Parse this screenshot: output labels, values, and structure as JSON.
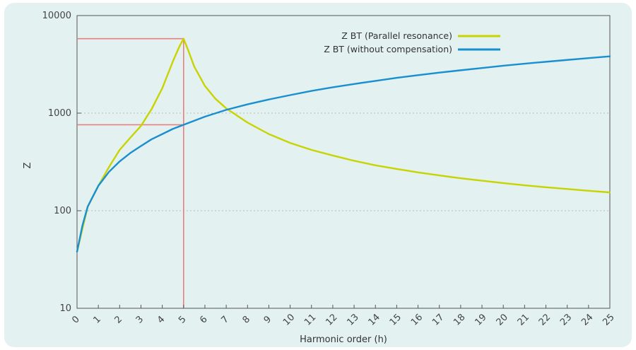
{
  "chart_data": {
    "type": "line",
    "title": "",
    "xlabel": "Harmonic order (h)",
    "ylabel": "Z",
    "xlim": [
      0,
      25
    ],
    "ylim": [
      10,
      10000
    ],
    "yscale": "log",
    "grid": true,
    "legend_position": "top-right",
    "x_ticks": [
      "0",
      "1",
      "2",
      "3",
      "4",
      "5",
      "6",
      "7",
      "8",
      "9",
      "10",
      "11",
      "12",
      "13",
      "14",
      "15",
      "16",
      "17",
      "18",
      "19",
      "20",
      "21",
      "22",
      "23",
      "24",
      "25"
    ],
    "y_ticks": [
      "10",
      "100",
      "1000",
      "10000"
    ],
    "series": [
      {
        "name": "Z BT (Parallel resonance)",
        "color": "#c8d400",
        "x": [
          0,
          0.5,
          1,
          1.5,
          2,
          2.5,
          3,
          3.5,
          4,
          4.5,
          4.8,
          5,
          5.2,
          5.5,
          6,
          6.5,
          7,
          8,
          9,
          10,
          11,
          12,
          13,
          14,
          15,
          16,
          17,
          18,
          19,
          20,
          21,
          22,
          23,
          24,
          25
        ],
        "y": [
          38,
          110,
          180,
          280,
          420,
          560,
          740,
          1100,
          1800,
          3400,
          4800,
          5800,
          4500,
          3000,
          1900,
          1400,
          1120,
          800,
          610,
          495,
          420,
          368,
          325,
          292,
          268,
          247,
          230,
          215,
          203,
          192,
          182,
          174,
          167,
          160,
          154
        ]
      },
      {
        "name": "Z BT (without compensation)",
        "color": "#1a8fd0",
        "x": [
          0,
          0.25,
          0.5,
          1,
          1.5,
          2,
          2.5,
          3,
          3.5,
          4,
          4.5,
          5,
          6,
          7,
          8,
          9,
          10,
          11,
          12,
          13,
          14,
          15,
          16,
          17,
          18,
          19,
          20,
          21,
          22,
          23,
          24,
          25
        ],
        "y": [
          38,
          70,
          110,
          180,
          250,
          320,
          390,
          460,
          540,
          610,
          690,
          760,
          920,
          1080,
          1230,
          1380,
          1530,
          1690,
          1840,
          1990,
          2140,
          2300,
          2450,
          2600,
          2750,
          2900,
          3060,
          3210,
          3360,
          3510,
          3660,
          3820
        ]
      }
    ],
    "annotations": {
      "color": "#e88080",
      "resonance_x": 5,
      "resonance_z": 5800,
      "uncompensated_z": 760
    }
  }
}
